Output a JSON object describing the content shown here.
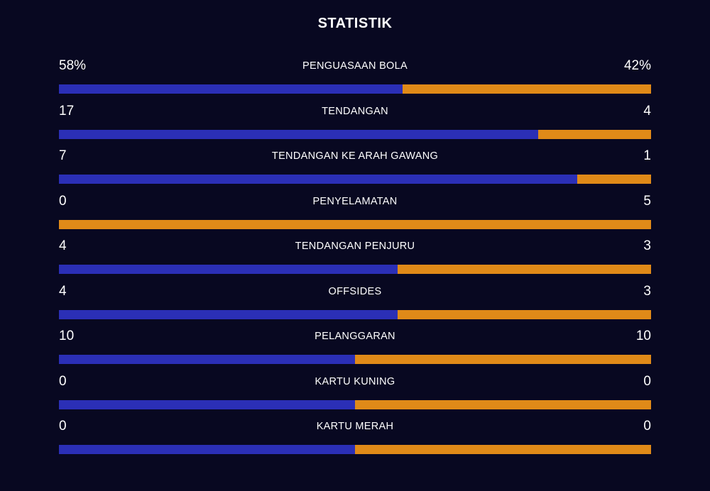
{
  "title": "STATISTIK",
  "colors": {
    "background": "#080821",
    "home": "#2b2fb6",
    "away": "#e08a18"
  },
  "stats": [
    {
      "label": "PENGUASAAN BOLA",
      "home": "58%",
      "away": "42%",
      "home_value": 58,
      "away_value": 42
    },
    {
      "label": "TENDANGAN",
      "home": "17",
      "away": "4",
      "home_value": 17,
      "away_value": 4
    },
    {
      "label": "TENDANGAN KE ARAH GAWANG",
      "home": "7",
      "away": "1",
      "home_value": 7,
      "away_value": 1
    },
    {
      "label": "PENYELAMATAN",
      "home": "0",
      "away": "5",
      "home_value": 0,
      "away_value": 5
    },
    {
      "label": "TENDANGAN PENJURU",
      "home": "4",
      "away": "3",
      "home_value": 4,
      "away_value": 3
    },
    {
      "label": "OFFSIDES",
      "home": "4",
      "away": "3",
      "home_value": 4,
      "away_value": 3
    },
    {
      "label": "PELANGGARAN",
      "home": "10",
      "away": "10",
      "home_value": 10,
      "away_value": 10
    },
    {
      "label": "KARTU KUNING",
      "home": "0",
      "away": "0",
      "home_value": 0,
      "away_value": 0
    },
    {
      "label": "KARTU MERAH",
      "home": "0",
      "away": "0",
      "home_value": 0,
      "away_value": 0
    }
  ]
}
